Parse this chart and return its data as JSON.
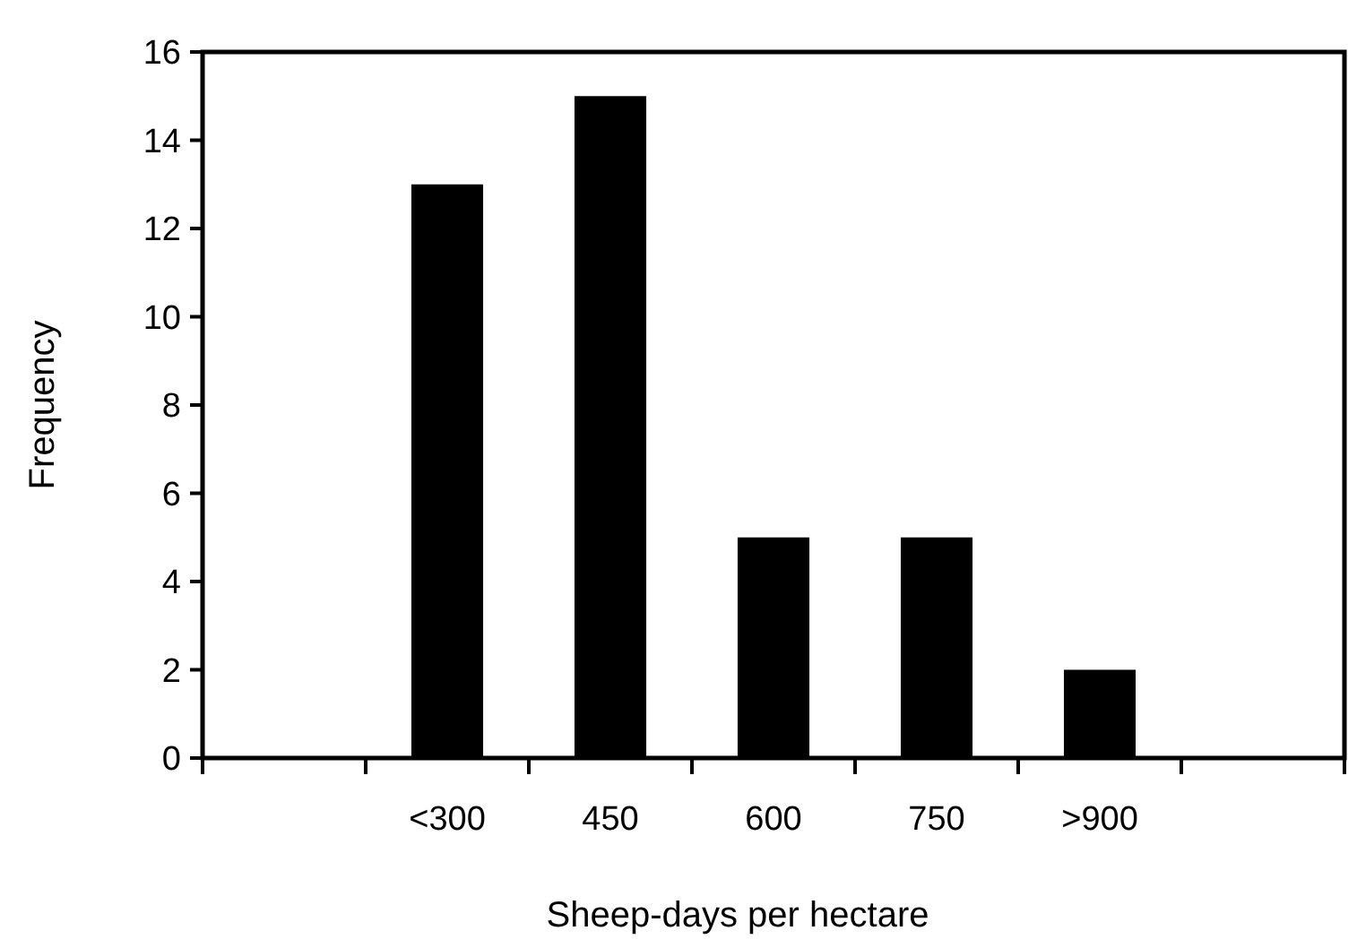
{
  "chart_data": {
    "type": "bar",
    "xlabel": "Sheep-days per hectare",
    "ylabel": "Frequency",
    "categories": [
      null,
      "<300",
      "450",
      "600",
      "750",
      ">900",
      null
    ],
    "values": [
      null,
      13,
      15,
      5,
      5,
      2,
      null
    ],
    "color": "#000000",
    "ylim": [
      0,
      16
    ],
    "yticks": [
      0,
      2,
      4,
      6,
      8,
      10,
      12,
      14,
      16
    ],
    "grid": false
  }
}
